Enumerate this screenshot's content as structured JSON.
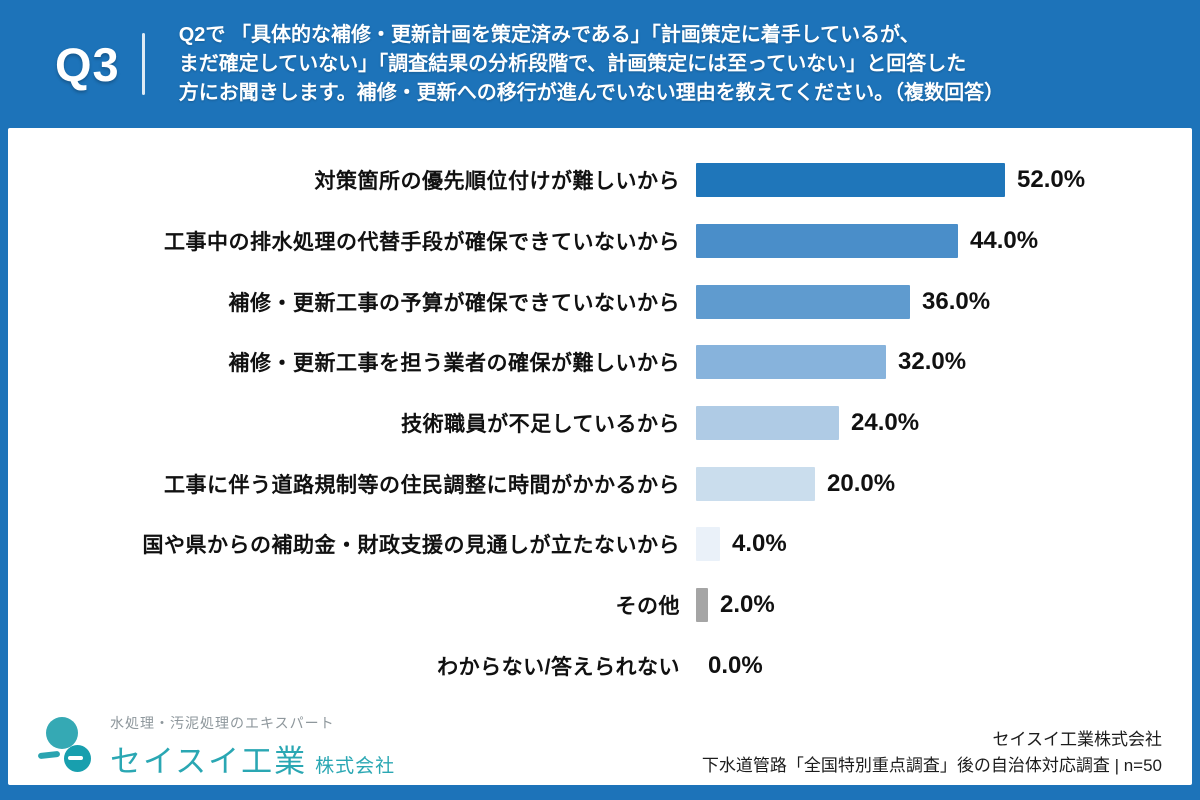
{
  "header": {
    "q_label": "Q3",
    "question_lines": [
      "Q2で 「具体的な補修・更新計画を策定済みである」「計画策定に着手しているが、",
      "まだ確定していない」「調査結果の分析段階で、計画策定には至っていない」と回答した",
      "方にお聞きします。補修・更新への移行が進んでいない理由を教えてください。（複数回答）"
    ]
  },
  "chart_data": {
    "type": "bar",
    "orientation": "horizontal",
    "title": "Q2で 「具体的な補修・更新計画を策定済みである」「計画策定に着手しているが、まだ確定していない」「調査結果の分析段階で、計画策定には至っていない」と回答した方にお聞きします。補修・更新への移行が進んでいない理由を教えてください。（複数回答）",
    "unit": "%",
    "xlim": [
      0,
      60
    ],
    "grid": false,
    "categories": [
      "対策箇所の優先順位付けが難しいから",
      "工事中の排水処理の代替手段が確保できていないから",
      "補修・更新工事の予算が確保できていないから",
      "補修・更新工事を担う業者の確保が難しいから",
      "技術職員が不足しているから",
      "工事に伴う道路規制等の住民調整に時間がかかるから",
      "国や県からの補助金・財政支援の見通しが立たないから",
      "その他",
      "わからない/答えられない"
    ],
    "values": [
      52.0,
      44.0,
      36.0,
      32.0,
      24.0,
      20.0,
      4.0,
      2.0,
      0.0
    ],
    "value_labels": [
      "52.0%",
      "44.0%",
      "36.0%",
      "32.0%",
      "24.0%",
      "20.0%",
      "4.0%",
      "2.0%",
      "0.0%"
    ],
    "bar_colors": [
      "#1f76ba",
      "#4a8ec9",
      "#5f9bcf",
      "#87b3dc",
      "#afcbe5",
      "#cadded",
      "#eaf1f9",
      "#a5a5a5",
      "#a5a5a5"
    ]
  },
  "footer": {
    "logo": {
      "tagline": "水処理・汚泥処理のエキスパート",
      "company": "セイスイ工業",
      "suffix": "株式会社"
    },
    "source_line1": "セイスイ工業株式会社",
    "source_line2": "下水道管路「全国特別重点調査」後の自治体対応調査 | n=50"
  },
  "colors": {
    "background_blue": "#1d73b9",
    "card_white": "#ffffff",
    "logo_teal": "#2aa7b3",
    "label_black": "#111111"
  }
}
